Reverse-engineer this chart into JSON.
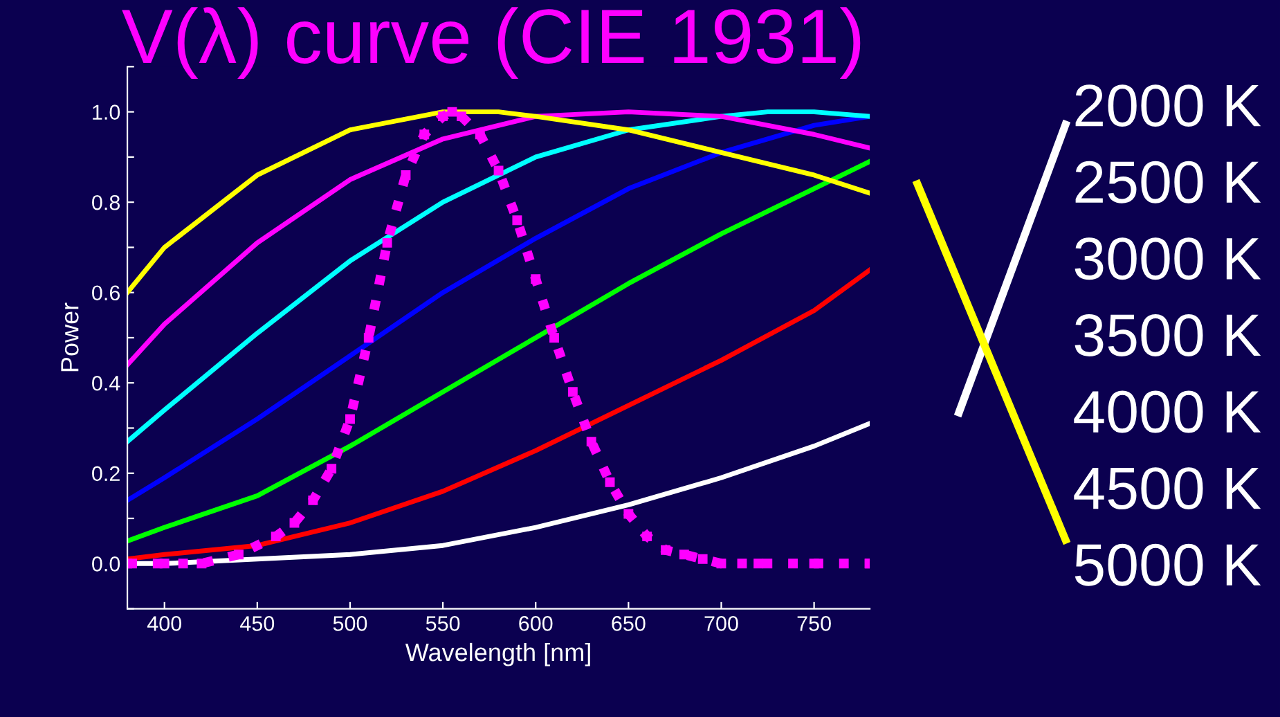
{
  "chart_data": {
    "type": "line",
    "title": "V(λ) curve (CIE 1931)",
    "xlabel": "Wavelength [nm]",
    "ylabel": "Power",
    "x": [
      380,
      400,
      450,
      500,
      550,
      600,
      650,
      700,
      750,
      780
    ],
    "series": [
      {
        "color": "#ffffff",
        "values": [
          0.0,
          0.0,
          0.01,
          0.02,
          0.04,
          0.08,
          0.13,
          0.19,
          0.26,
          0.31
        ]
      },
      {
        "color": "#ff0000",
        "values": [
          0.01,
          0.02,
          0.04,
          0.09,
          0.16,
          0.25,
          0.35,
          0.45,
          0.56,
          0.65
        ]
      },
      {
        "color": "#00ff00",
        "values": [
          0.05,
          0.08,
          0.15,
          0.26,
          0.38,
          0.5,
          0.62,
          0.73,
          0.83,
          0.89
        ]
      },
      {
        "color": "#0000ff",
        "values": [
          0.14,
          0.19,
          0.32,
          0.46,
          0.6,
          0.72,
          0.83,
          0.91,
          0.97,
          0.99
        ]
      },
      {
        "color": "#00ffff",
        "x": [
          380,
          400,
          450,
          500,
          550,
          600,
          650,
          700,
          725,
          750,
          780
        ],
        "values": [
          0.27,
          0.34,
          0.51,
          0.67,
          0.8,
          0.9,
          0.96,
          0.99,
          1.0,
          1.0,
          0.99
        ]
      },
      {
        "color": "#ff00ff",
        "values": [
          0.44,
          0.53,
          0.71,
          0.85,
          0.94,
          0.99,
          1.0,
          0.99,
          0.95,
          0.92
        ]
      },
      {
        "color": "#ffff00",
        "x": [
          380,
          400,
          450,
          500,
          550,
          580,
          600,
          650,
          700,
          750,
          780
        ],
        "values": [
          0.6,
          0.7,
          0.86,
          0.96,
          1.0,
          1.0,
          0.99,
          0.96,
          0.91,
          0.86,
          0.82
        ]
      },
      {
        "color": "#ff00ff",
        "marker": "square",
        "line_style": "dotted",
        "x": [
          380,
          400,
          420,
          440,
          460,
          470,
          480,
          490,
          500,
          510,
          520,
          530,
          540,
          550,
          555,
          560,
          570,
          580,
          590,
          600,
          610,
          620,
          630,
          640,
          650,
          660,
          670,
          680,
          690,
          700,
          720,
          750,
          780
        ],
        "values": [
          0.0,
          0.0,
          0.0,
          0.02,
          0.06,
          0.09,
          0.14,
          0.21,
          0.32,
          0.5,
          0.71,
          0.86,
          0.95,
          0.99,
          1.0,
          0.99,
          0.95,
          0.87,
          0.76,
          0.63,
          0.5,
          0.38,
          0.27,
          0.18,
          0.11,
          0.06,
          0.03,
          0.02,
          0.01,
          0.0,
          0.0,
          0.0,
          0.0
        ]
      }
    ],
    "annotations": [
      "2000 K",
      "2500 K",
      "3000 K",
      "3500 K",
      "4000 K",
      "4500 K",
      "5000 K"
    ],
    "xlim": [
      380,
      780
    ],
    "ylim": [
      -0.1,
      1.1
    ],
    "xticks": [
      400,
      450,
      500,
      550,
      600,
      650,
      700,
      750
    ],
    "yticks": [
      {
        "value": -0.1,
        "label": null
      },
      {
        "value": 0,
        "label": "0.0"
      },
      {
        "value": 0.1,
        "label": null
      },
      0.2,
      {
        "value": 0.3,
        "label": null
      },
      0.4,
      {
        "value": 0.5,
        "label": null
      },
      0.6,
      {
        "value": 0.7,
        "label": null
      },
      0.8,
      {
        "value": 0.9,
        "label": null
      },
      {
        "value": 1,
        "label": "1.0"
      },
      {
        "value": 1.1,
        "label": null
      }
    ],
    "grid": false,
    "legend": false
  }
}
